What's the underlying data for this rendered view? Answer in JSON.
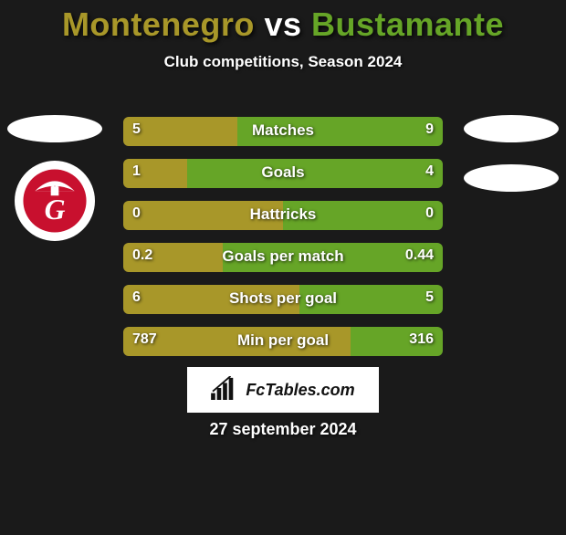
{
  "player1": {
    "name": "Montenegro",
    "color": "#a89729"
  },
  "player2": {
    "name": "Bustamante",
    "color": "#66a527"
  },
  "vs_text": "vs",
  "vs_color": "#ffffff",
  "subtitle": "Club competitions, Season 2024",
  "stats": [
    {
      "label": "Matches",
      "v1": "5",
      "v2": "9",
      "w1": 35.7
    },
    {
      "label": "Goals",
      "v1": "1",
      "v2": "4",
      "w1": 20
    },
    {
      "label": "Hattricks",
      "v1": "0",
      "v2": "0",
      "w1": 50
    },
    {
      "label": "Goals per match",
      "v1": "0.2",
      "v2": "0.44",
      "w1": 31
    },
    {
      "label": "Shots per goal",
      "v1": "6",
      "v2": "5",
      "w1": 55
    },
    {
      "label": "Min per goal",
      "v1": "787",
      "v2": "316",
      "w1": 71
    }
  ],
  "brand": "FcTables.com",
  "date": "27 september 2024",
  "colors": {
    "background": "#1a1a1a",
    "text": "#ffffff",
    "brand_box_bg": "#ffffff",
    "brand_text": "#111111"
  },
  "badge": {
    "outer_fill": "#ffffff",
    "main_fill": "#c8102e",
    "letter": "G"
  }
}
